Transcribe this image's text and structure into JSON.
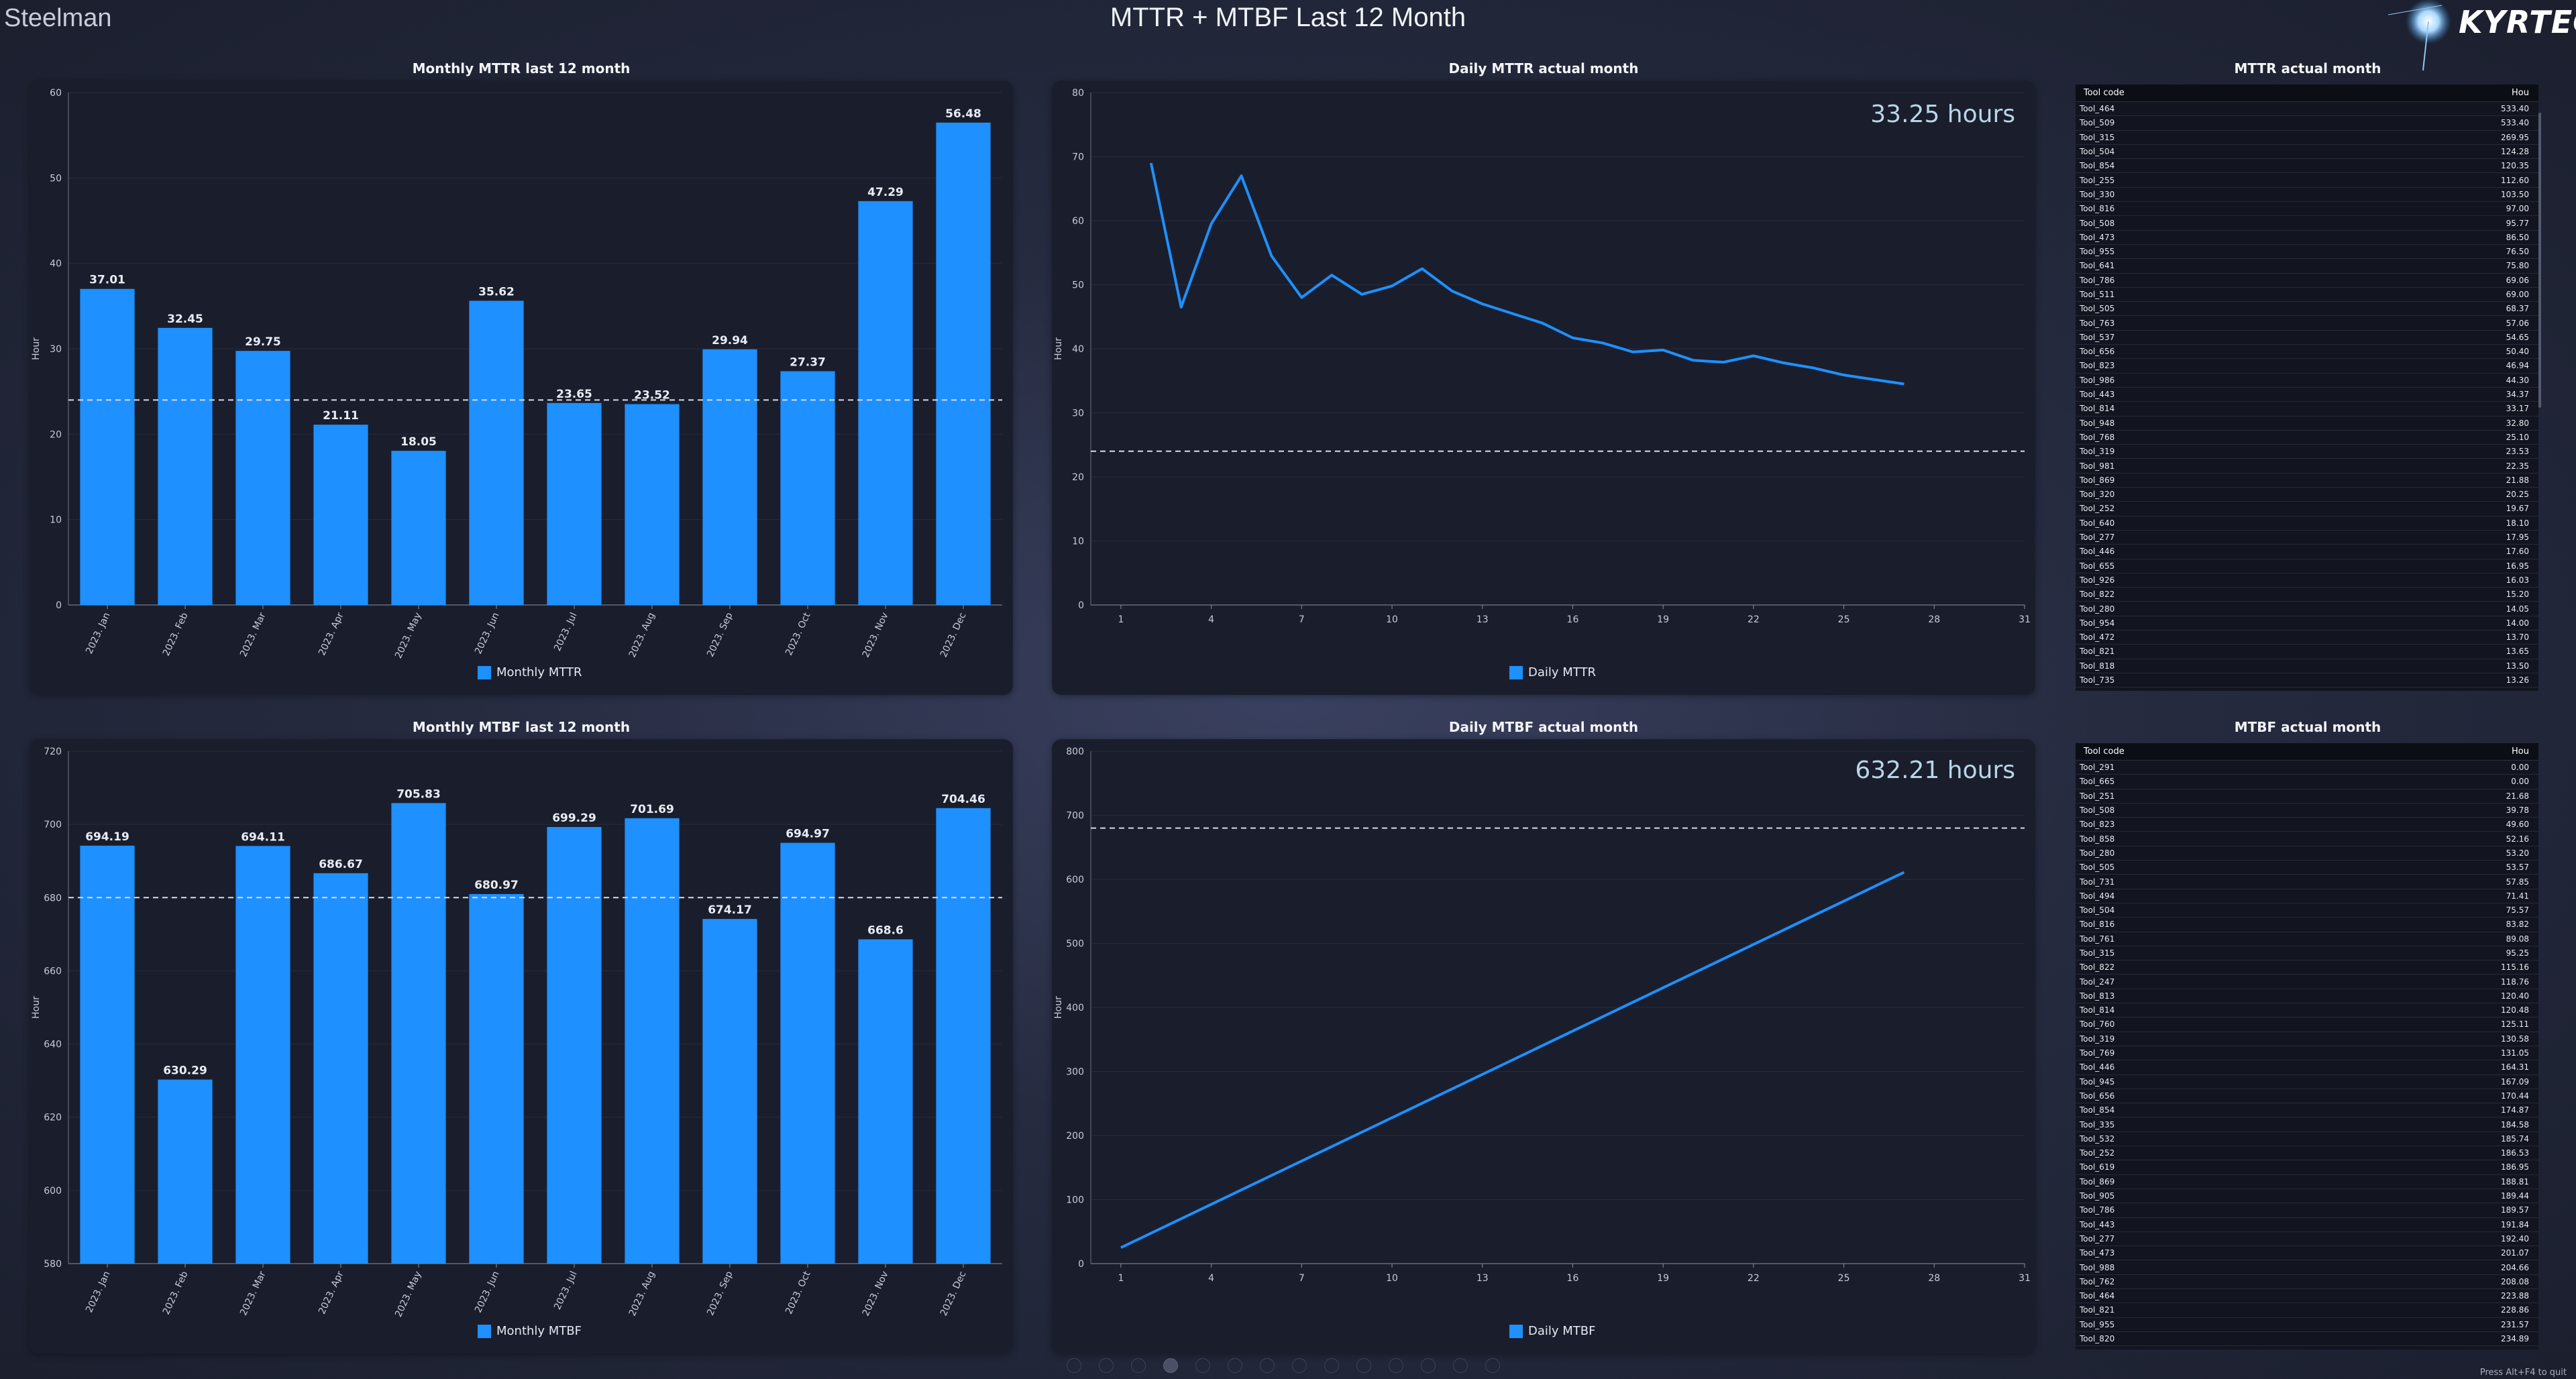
{
  "app": {
    "brand": "Steelman",
    "title": "MTTR + MTBF Last 12 Month",
    "logo": "KYRTECH",
    "exit_hint": "Press Alt+F4 to quit"
  },
  "colors": {
    "bar": "#1e90ff",
    "line": "#1e90ff",
    "axis": "#c8ccd8",
    "grid": "#262b3a",
    "target": "#d8dce6"
  },
  "chart_data": [
    {
      "id": "monthly_mttr",
      "type": "bar",
      "title": "Monthly MTTR last 12 month",
      "categories": [
        "2023. Jan",
        "2023. Feb",
        "2023. Mar",
        "2023. Apr",
        "2023. May",
        "2023. Jun",
        "2023. Jul",
        "2023. Aug",
        "2023. Sep",
        "2023. Oct",
        "2023. Nov",
        "2023. Dec"
      ],
      "series": [
        {
          "name": "Monthly MTTR",
          "values": [
            37.01,
            32.45,
            29.75,
            21.11,
            18.05,
            35.62,
            23.65,
            23.52,
            29.94,
            27.37,
            47.29,
            56.48
          ]
        }
      ],
      "value_labels": [
        "37.01",
        "32.45",
        "29.75",
        "21.11",
        "18.05",
        "35.62",
        "23.65",
        "23.52",
        "29.94",
        "27.37",
        "47.29",
        "56.48"
      ],
      "ylabel": "Hour",
      "ylim": [
        0,
        60
      ],
      "yticks": [
        0,
        10,
        20,
        30,
        40,
        50,
        60
      ],
      "target": 24
    },
    {
      "id": "daily_mttr",
      "type": "line",
      "title": "Daily MTTR actual month",
      "x": [
        2,
        3,
        4,
        5,
        6,
        7,
        8,
        9,
        10,
        11,
        12,
        13,
        14,
        15,
        16,
        17,
        18,
        19,
        20,
        21,
        22,
        23,
        24,
        25,
        26,
        27
      ],
      "series": [
        {
          "name": "Daily MTTR",
          "values": [
            69,
            46.5,
            59.5,
            67,
            54.5,
            48,
            51.5,
            48.5,
            49.8,
            52.5,
            49,
            47,
            45.5,
            44,
            41.7,
            40.9,
            39.5,
            39.8,
            38.2,
            37.9,
            38.9,
            37.8,
            37,
            35.9,
            35.2,
            34.5
          ]
        }
      ],
      "ylabel": "Hour",
      "xlim": [
        0,
        31
      ],
      "xticks": [
        1,
        4,
        7,
        10,
        13,
        16,
        19,
        22,
        25,
        28,
        31
      ],
      "ylim": [
        0,
        80
      ],
      "yticks": [
        0,
        10,
        20,
        30,
        40,
        50,
        60,
        70,
        80
      ],
      "target": 24,
      "summary": "33.25 hours"
    },
    {
      "id": "monthly_mtbf",
      "type": "bar",
      "title": "Monthly MTBF last 12 month",
      "categories": [
        "2023. Jan",
        "2023. Feb",
        "2023. Mar",
        "2023. Apr",
        "2023. May",
        "2023. Jun",
        "2023. Jul",
        "2023. Aug",
        "2023. Sep",
        "2023. Oct",
        "2023. Nov",
        "2023. Dec"
      ],
      "series": [
        {
          "name": "Monthly MTBF",
          "values": [
            694.19,
            630.29,
            694.11,
            686.67,
            705.83,
            680.97,
            699.29,
            701.69,
            674.17,
            694.97,
            668.6,
            704.46
          ]
        }
      ],
      "value_labels": [
        "694.19",
        "630.29",
        "694.11",
        "686.67",
        "705.83",
        "680.97",
        "699.29",
        "701.69",
        "674.17",
        "694.97",
        "668.6",
        "704.46"
      ],
      "ylabel": "Hour",
      "ylim": [
        580,
        720
      ],
      "yticks": [
        580,
        600,
        620,
        640,
        660,
        680,
        700,
        720
      ],
      "target": 680
    },
    {
      "id": "daily_mtbf",
      "type": "line",
      "title": "Daily MTBF actual month",
      "x": [
        1,
        27
      ],
      "series": [
        {
          "name": "Daily MTBF",
          "values": [
            25,
            611
          ]
        }
      ],
      "ylabel": "Hour",
      "xlim": [
        0,
        31
      ],
      "xticks": [
        1,
        4,
        7,
        10,
        13,
        16,
        19,
        22,
        25,
        28,
        31
      ],
      "ylim": [
        0,
        800
      ],
      "yticks": [
        0,
        100,
        200,
        300,
        400,
        500,
        600,
        700,
        800
      ],
      "target": 680,
      "summary": "632.21 hours"
    }
  ],
  "mttr_table": {
    "title": "MTTR actual month",
    "columns": [
      "Tool code",
      "Hou"
    ],
    "rows": [
      [
        "Tool_464",
        "533.40"
      ],
      [
        "Tool_509",
        "533.40"
      ],
      [
        "Tool_315",
        "269.95"
      ],
      [
        "Tool_504",
        "124.28"
      ],
      [
        "Tool_854",
        "120.35"
      ],
      [
        "Tool_255",
        "112.60"
      ],
      [
        "Tool_330",
        "103.50"
      ],
      [
        "Tool_816",
        "97.00"
      ],
      [
        "Tool_508",
        "95.77"
      ],
      [
        "Tool_473",
        "86.50"
      ],
      [
        "Tool_955",
        "76.50"
      ],
      [
        "Tool_641",
        "75.80"
      ],
      [
        "Tool_786",
        "69.06"
      ],
      [
        "Tool_511",
        "69.00"
      ],
      [
        "Tool_505",
        "68.37"
      ],
      [
        "Tool_763",
        "57.06"
      ],
      [
        "Tool_537",
        "54.65"
      ],
      [
        "Tool_656",
        "50.40"
      ],
      [
        "Tool_823",
        "46.94"
      ],
      [
        "Tool_986",
        "44.30"
      ],
      [
        "Tool_443",
        "34.37"
      ],
      [
        "Tool_814",
        "33.17"
      ],
      [
        "Tool_948",
        "32.80"
      ],
      [
        "Tool_768",
        "25.10"
      ],
      [
        "Tool_319",
        "23.53"
      ],
      [
        "Tool_981",
        "22.35"
      ],
      [
        "Tool_869",
        "21.88"
      ],
      [
        "Tool_320",
        "20.25"
      ],
      [
        "Tool_252",
        "19.67"
      ],
      [
        "Tool_640",
        "18.10"
      ],
      [
        "Tool_277",
        "17.95"
      ],
      [
        "Tool_446",
        "17.60"
      ],
      [
        "Tool_655",
        "16.95"
      ],
      [
        "Tool_926",
        "16.03"
      ],
      [
        "Tool_822",
        "15.20"
      ],
      [
        "Tool_280",
        "14.05"
      ],
      [
        "Tool_954",
        "14.00"
      ],
      [
        "Tool_472",
        "13.70"
      ],
      [
        "Tool_821",
        "13.65"
      ],
      [
        "Tool_818",
        "13.50"
      ],
      [
        "Tool_735",
        "13.26"
      ]
    ]
  },
  "mtbf_table": {
    "title": "MTBF actual month",
    "columns": [
      "Tool code",
      "Hou"
    ],
    "rows": [
      [
        "Tool_291",
        "0.00"
      ],
      [
        "Tool_665",
        "0.00"
      ],
      [
        "Tool_251",
        "21.68"
      ],
      [
        "Tool_508",
        "39.78"
      ],
      [
        "Tool_823",
        "49.60"
      ],
      [
        "Tool_858",
        "52.16"
      ],
      [
        "Tool_280",
        "53.20"
      ],
      [
        "Tool_505",
        "53.57"
      ],
      [
        "Tool_731",
        "57.85"
      ],
      [
        "Tool_494",
        "71.41"
      ],
      [
        "Tool_504",
        "75.57"
      ],
      [
        "Tool_816",
        "83.82"
      ],
      [
        "Tool_761",
        "89.08"
      ],
      [
        "Tool_315",
        "95.25"
      ],
      [
        "Tool_822",
        "115.16"
      ],
      [
        "Tool_247",
        "118.76"
      ],
      [
        "Tool_813",
        "120.40"
      ],
      [
        "Tool_814",
        "120.48"
      ],
      [
        "Tool_760",
        "125.11"
      ],
      [
        "Tool_319",
        "130.58"
      ],
      [
        "Tool_769",
        "131.05"
      ],
      [
        "Tool_446",
        "164.31"
      ],
      [
        "Tool_945",
        "167.09"
      ],
      [
        "Tool_656",
        "170.44"
      ],
      [
        "Tool_854",
        "174.87"
      ],
      [
        "Tool_335",
        "184.58"
      ],
      [
        "Tool_532",
        "185.74"
      ],
      [
        "Tool_252",
        "186.53"
      ],
      [
        "Tool_619",
        "186.95"
      ],
      [
        "Tool_869",
        "188.81"
      ],
      [
        "Tool_905",
        "189.44"
      ],
      [
        "Tool_786",
        "189.57"
      ],
      [
        "Tool_443",
        "191.84"
      ],
      [
        "Tool_277",
        "192.40"
      ],
      [
        "Tool_473",
        "201.07"
      ],
      [
        "Tool_988",
        "204.66"
      ],
      [
        "Tool_762",
        "208.08"
      ],
      [
        "Tool_464",
        "223.88"
      ],
      [
        "Tool_821",
        "228.86"
      ],
      [
        "Tool_955",
        "231.57"
      ],
      [
        "Tool_820",
        "234.89"
      ]
    ]
  },
  "pagination": {
    "pages": 14,
    "active": 3
  }
}
